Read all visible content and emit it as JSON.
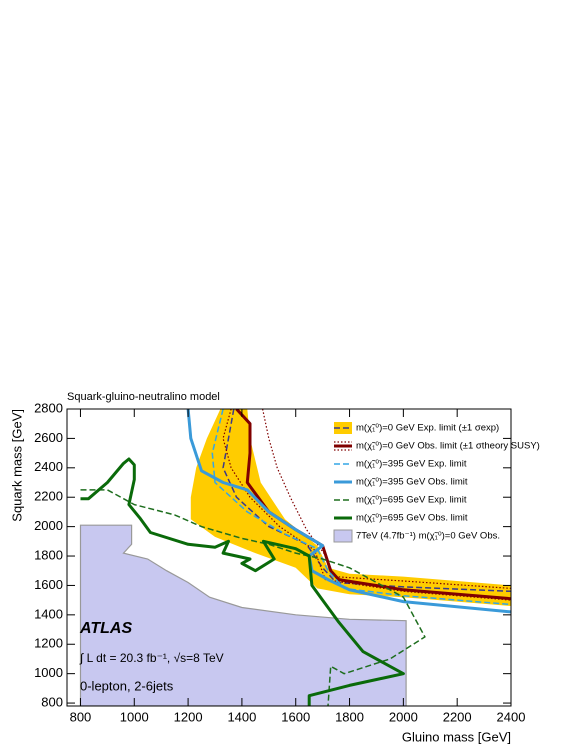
{
  "chart_data": {
    "type": "contour",
    "title": "Squark-gluino-neutralino model",
    "x_label": "Gluino mass [GeV]",
    "y_label": "Squark mass [GeV]",
    "xlim": [
      750,
      2400
    ],
    "ylim": [
      780,
      2800
    ],
    "xticks": [
      800,
      1000,
      1200,
      1400,
      1600,
      1800,
      2000,
      2200,
      2400
    ],
    "yticks": [
      800,
      1000,
      1200,
      1400,
      1600,
      1800,
      2000,
      2200,
      2400,
      2600,
      2800
    ],
    "annotations": [
      "ATLAS",
      "∫ L dt = 20.3 fb⁻¹, √s=8 TeV",
      "0-lepton, 2-6jets"
    ],
    "legend": "upper right",
    "series": [
      {
        "name": "7TeV (4.7fb⁻¹) m(χ̃₁⁰)=0 GeV Obs.",
        "style": "fill",
        "color": "#c8c8f0",
        "edge": "#999999",
        "x": [
          800,
          800,
          990,
          990,
          960,
          1050,
          1120,
          1200,
          1280,
          1400,
          1600,
          1800,
          2010,
          2010
        ],
        "y": [
          780,
          2010,
          2010,
          1880,
          1820,
          1780,
          1700,
          1620,
          1520,
          1450,
          1400,
          1370,
          1360,
          780
        ]
      },
      {
        "name": "m(χ̃₁⁰)=0 GeV Exp. limit (±1 σexp)",
        "style": "dashed",
        "color": "#3a3a8a",
        "width": 1.5,
        "band_color": "#ffcc00",
        "band_x": [
          1420,
          1430,
          1470,
          1560,
          1680,
          1720,
          1800,
          2000,
          2400,
          2400,
          2000,
          1800,
          1680,
          1600,
          1450,
          1300,
          1210,
          1210,
          1230,
          1270,
          1320
        ],
        "band_y": [
          2800,
          2600,
          2300,
          2050,
          1870,
          1720,
          1680,
          1660,
          1600,
          1460,
          1520,
          1540,
          1580,
          1720,
          1820,
          1930,
          2050,
          2200,
          2400,
          2600,
          2800
        ],
        "x": [
          1370,
          1350,
          1330,
          1380,
          1500,
          1640,
          1700,
          1750,
          2000,
          2400
        ],
        "y": [
          2800,
          2600,
          2400,
          2200,
          2000,
          1880,
          1720,
          1620,
          1590,
          1560
        ]
      },
      {
        "name": "m(χ̃₁⁰)=0 GeV Obs. limit (±1 σtheory SUSY)",
        "style": "solid",
        "color": "#800000",
        "width": 3,
        "x": [
          1380,
          1430,
          1430,
          1420,
          1500,
          1600,
          1700,
          1730,
          1760,
          2000,
          2400
        ],
        "y": [
          2800,
          2700,
          2500,
          2300,
          2100,
          1980,
          1870,
          1700,
          1640,
          1570,
          1510
        ],
        "theory_upper_x": [
          1477,
          1500,
          1531,
          1580,
          1640,
          1712,
          1740,
          2000,
          2400
        ],
        "theory_upper_y": [
          2800,
          2600,
          2400,
          2200,
          1980,
          1800,
          1660,
          1630,
          1580
        ],
        "theory_lower_x": [
          1360,
          1330,
          1360,
          1430,
          1540,
          1670,
          1710,
          2000,
          2400
        ],
        "theory_lower_y": [
          2800,
          2600,
          2400,
          2200,
          2000,
          1840,
          1640,
          1560,
          1500
        ]
      },
      {
        "name": "m(χ̃₁⁰)=395 GeV Exp. limit",
        "style": "dashed",
        "color": "#33a6e6",
        "width": 1.5,
        "x": [
          1330,
          1290,
          1300,
          1420,
          1560,
          1680,
          1720,
          1780,
          2000,
          2400
        ],
        "y": [
          2800,
          2500,
          2300,
          2100,
          1950,
          1850,
          1700,
          1580,
          1530,
          1470
        ]
      },
      {
        "name": "m(χ̃₁⁰)=395 GeV Obs. limit",
        "style": "solid",
        "color": "#3a9ad9",
        "width": 3,
        "x": [
          1200,
          1210,
          1250,
          1330,
          1420,
          1500,
          1600,
          1700,
          1650,
          1660,
          1720,
          1800,
          2000,
          2400
        ],
        "y": [
          2800,
          2600,
          2380,
          2300,
          2250,
          2100,
          1980,
          1870,
          1800,
          1700,
          1640,
          1570,
          1490,
          1420
        ]
      },
      {
        "name": "m(χ̃₁⁰)=695 GeV Exp. limit",
        "style": "dashed",
        "color": "#1e6e1e",
        "width": 1.5,
        "x": [
          800,
          900,
          1000,
          1150,
          1250,
          1400,
          1500,
          1600,
          1700,
          1800,
          1900,
          2000,
          2080,
          1950,
          1780,
          1730,
          1720
        ],
        "y": [
          2250,
          2250,
          2150,
          2080,
          2000,
          1920,
          1880,
          1820,
          1780,
          1720,
          1620,
          1520,
          1250,
          1100,
          1000,
          1050,
          780
        ]
      },
      {
        "name": "m(χ̃₁⁰)=695 GeV Obs. limit",
        "style": "solid",
        "color": "#0a6a0a",
        "width": 3,
        "x": [
          800,
          830,
          900,
          960,
          980,
          1000,
          1000,
          980,
          1020,
          1060,
          1200,
          1300,
          1350,
          1330,
          1430,
          1400,
          1450,
          1520,
          1480,
          1600,
          1650,
          1660,
          1700,
          1760,
          1850,
          2000,
          1800,
          1650,
          1650
        ],
        "y": [
          2190,
          2190,
          2300,
          2430,
          2460,
          2420,
          2320,
          2150,
          2060,
          1960,
          1880,
          1860,
          1900,
          1820,
          1780,
          1750,
          1700,
          1780,
          1900,
          1850,
          1800,
          1600,
          1500,
          1350,
          1150,
          1000,
          920,
          850,
          780
        ]
      }
    ]
  }
}
